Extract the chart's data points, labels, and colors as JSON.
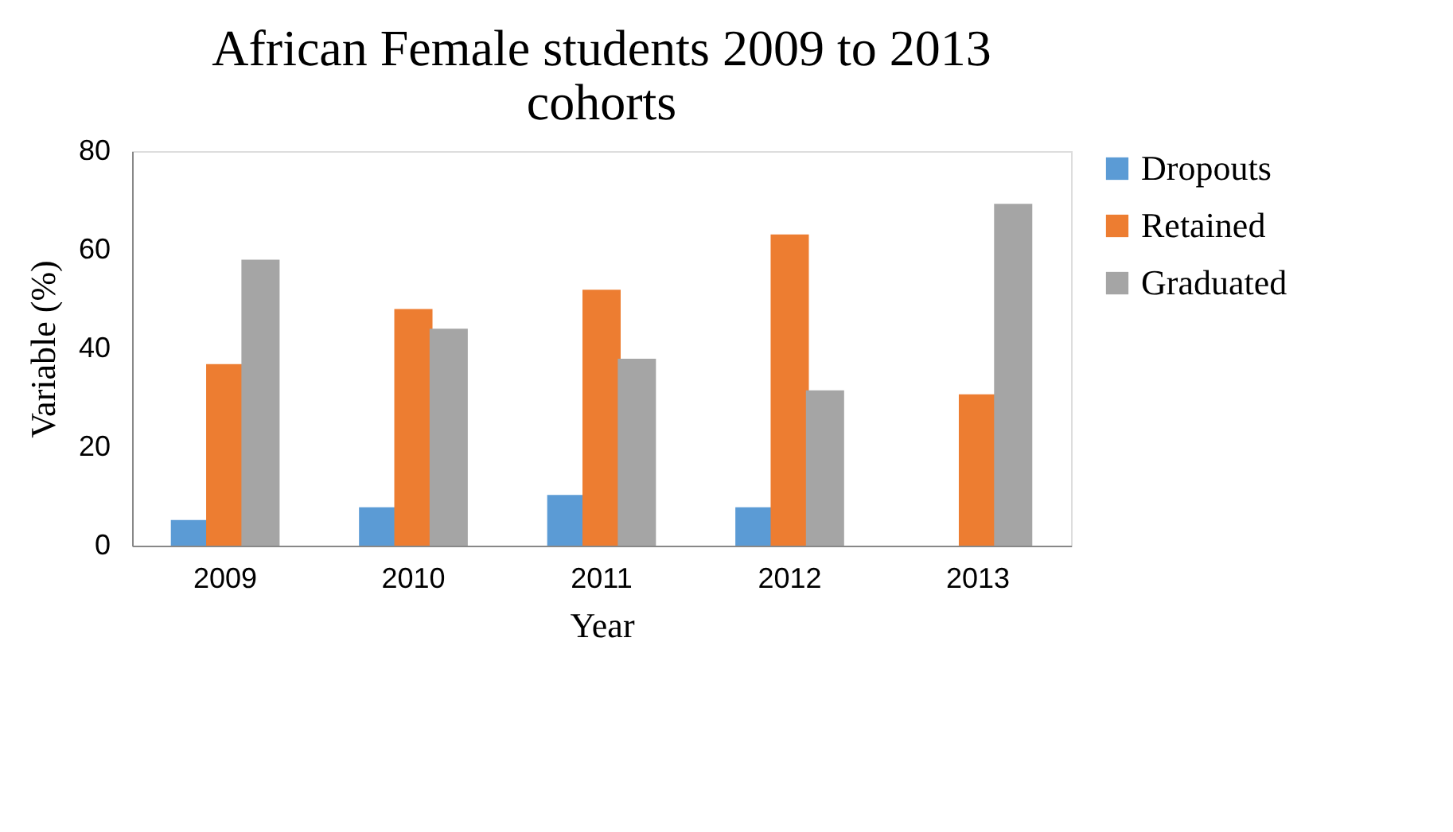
{
  "chart_data": {
    "type": "bar",
    "title": "African Female students 2009 to 2013 cohorts",
    "xlabel": "Year",
    "ylabel": "Variable   (%)",
    "categories": [
      "2009",
      "2010",
      "2011",
      "2012",
      "2013"
    ],
    "series": [
      {
        "name": "Dropouts",
        "color": "#5b9bd5",
        "values": [
          5.2,
          7.8,
          10.3,
          7.8,
          null
        ]
      },
      {
        "name": "Retained",
        "color": "#ed7d31",
        "values": [
          36.8,
          48,
          51.9,
          63.1,
          30.7
        ]
      },
      {
        "name": "Graduated",
        "color": "#a5a5a5",
        "values": [
          58,
          44,
          37.9,
          31.5,
          69.3
        ]
      }
    ],
    "ylim": [
      0,
      80
    ],
    "yticks": [
      0,
      20,
      40,
      60,
      80
    ],
    "grid": false,
    "legend": "right"
  }
}
